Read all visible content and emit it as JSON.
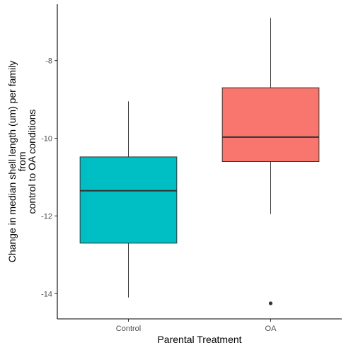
{
  "chart_data": {
    "type": "box",
    "xlabel": "Parental Treatment",
    "ylabel_lines": [
      "Change in median shell length (um) per family",
      "from",
      "control to OA conditions"
    ],
    "ylim": [
      -14.65,
      -6.55
    ],
    "yticks": [
      -14,
      -12,
      -10,
      -8
    ],
    "ytick_labels": [
      "-14",
      "-12",
      "-10",
      "-8"
    ],
    "grid": false,
    "legend": "none",
    "categories": [
      "Control",
      "OA"
    ],
    "boxes": [
      {
        "category": "Control",
        "color": "#00BFC4",
        "whisker_low": -14.1,
        "q1": -12.7,
        "median": -11.35,
        "q3": -10.48,
        "whisker_high": -9.05,
        "outliers": []
      },
      {
        "category": "OA",
        "color": "#F8766D",
        "whisker_low": -11.95,
        "q1": -10.6,
        "median": -9.97,
        "q3": -8.7,
        "whisker_high": -6.9,
        "outliers": [
          -14.25
        ]
      }
    ]
  }
}
